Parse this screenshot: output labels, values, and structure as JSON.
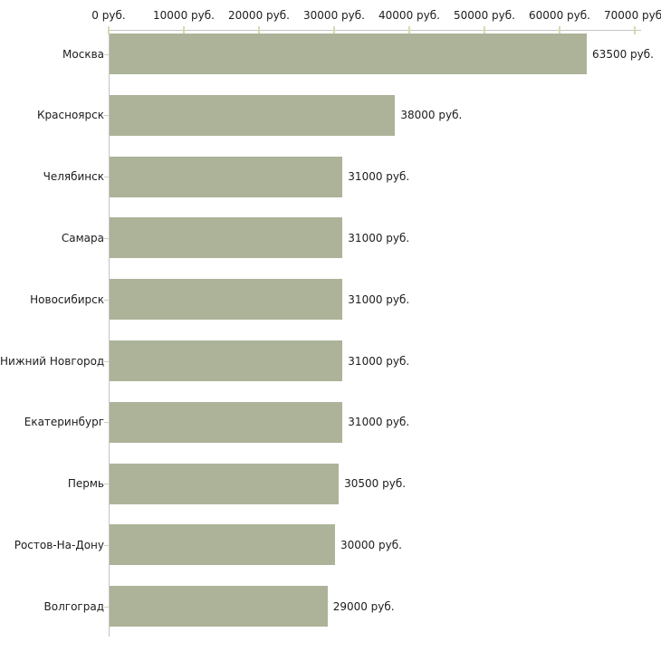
{
  "chart_data": {
    "type": "bar",
    "orientation": "horizontal",
    "title": "",
    "categories": [
      "Москва",
      "Красноярск",
      "Челябинск",
      "Самара",
      "Новосибирск",
      "Нижний Новгород",
      "Екатеринбург",
      "Пермь",
      "Ростов-На-Дону",
      "Волгоград"
    ],
    "values": [
      63500,
      38000,
      31000,
      31000,
      31000,
      31000,
      31000,
      30500,
      30000,
      29000
    ],
    "value_labels": [
      "63500 руб.",
      "38000 руб.",
      "31000 руб.",
      "31000 руб.",
      "31000 руб.",
      "31000 руб.",
      "31000 руб.",
      "30500 руб.",
      "30000 руб.",
      "29000 руб."
    ],
    "x_axis": {
      "position": "top",
      "range": [
        0,
        70000
      ],
      "tick_values": [
        0,
        10000,
        20000,
        30000,
        40000,
        50000,
        60000,
        70000
      ],
      "tick_labels": [
        "0 руб.",
        "10000 руб.",
        "20000 руб.",
        "30000 руб.",
        "40000 руб.",
        "50000 руб.",
        "60000 руб.",
        "70000 руб."
      ]
    },
    "grid": false,
    "legend": false,
    "colors": {
      "bar": "#acb399",
      "axis_line": "#c4c4c4",
      "tick": "#d9d9ae",
      "category_tick": "#cfcfbc",
      "text": "#1c1c1c"
    }
  }
}
